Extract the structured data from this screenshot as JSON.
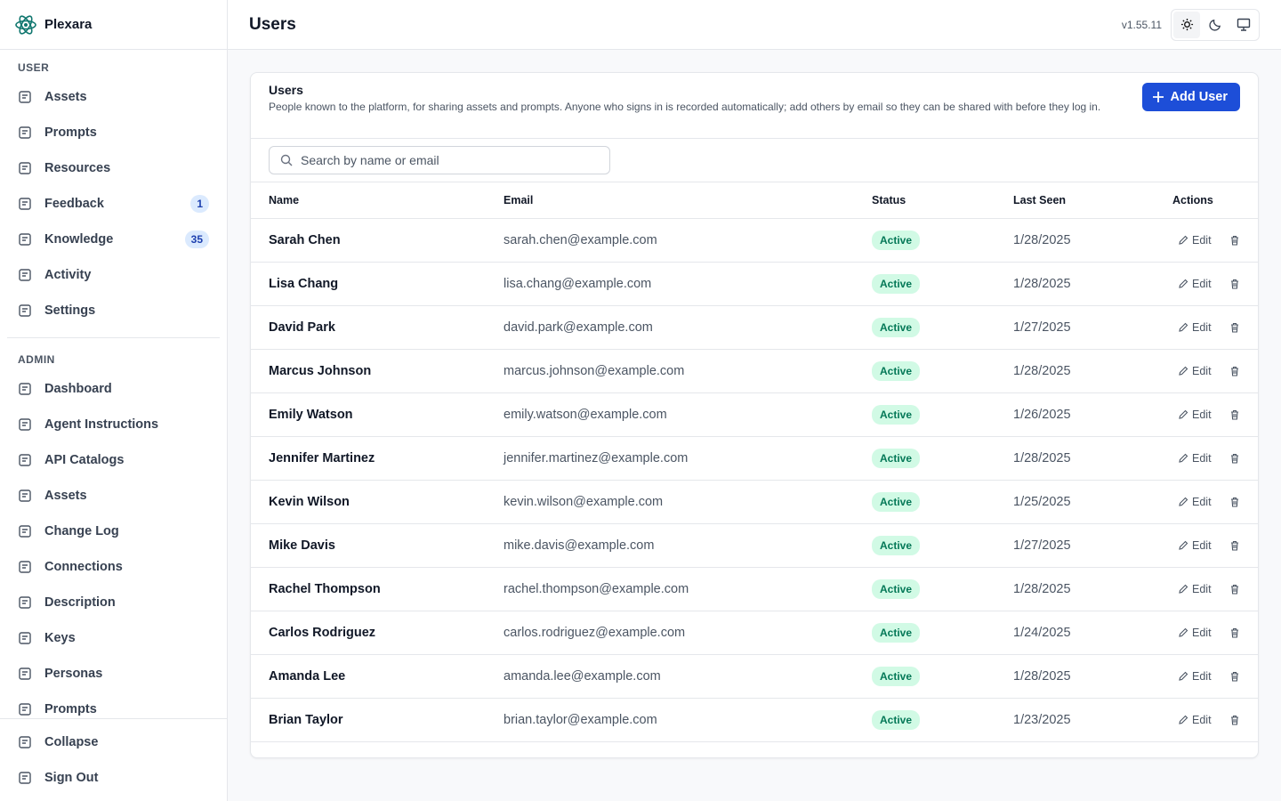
{
  "sidebar": {
    "brand": "Plexara",
    "sections": [
      {
        "title": "USER",
        "items": [
          {
            "label": "Assets"
          },
          {
            "label": "Prompts"
          },
          {
            "label": "Resources"
          },
          {
            "label": "Feedback",
            "badge": 1
          },
          {
            "label": "Knowledge",
            "badge": 35
          },
          {
            "label": "Activity"
          },
          {
            "label": "Settings"
          }
        ]
      },
      {
        "title": "ADMIN",
        "items": [
          {
            "label": "Dashboard"
          },
          {
            "label": "Agent Instructions"
          },
          {
            "label": "API Catalogs"
          },
          {
            "label": "Assets"
          },
          {
            "label": "Change Log"
          },
          {
            "label": "Connections"
          },
          {
            "label": "Description"
          },
          {
            "label": "Keys"
          },
          {
            "label": "Personas"
          },
          {
            "label": "Prompts"
          }
        ]
      }
    ],
    "footer": [
      {
        "label": "Collapse"
      },
      {
        "label": "Sign Out"
      }
    ]
  },
  "header": {
    "title": "Users",
    "version": "v1.55.11"
  },
  "card": {
    "title": "Users",
    "description": "People known to the platform, for sharing assets and prompts. Anyone who signs in is recorded automatically; add others by email so they can be shared with before they log in.",
    "add_button": "Add User",
    "search_placeholder": "Search by name or email",
    "columns": [
      "Name",
      "Email",
      "Status",
      "Last Seen",
      "Actions"
    ],
    "edit_label": "Edit",
    "rows": [
      [
        "Sarah Chen",
        "sarah.chen@example.com",
        "Active",
        "1/28/2025"
      ],
      [
        "Lisa Chang",
        "lisa.chang@example.com",
        "Active",
        "1/28/2025"
      ],
      [
        "David Park",
        "david.park@example.com",
        "Active",
        "1/27/2025"
      ],
      [
        "Marcus Johnson",
        "marcus.johnson@example.com",
        "Active",
        "1/28/2025"
      ],
      [
        "Emily Watson",
        "emily.watson@example.com",
        "Active",
        "1/26/2025"
      ],
      [
        "Jennifer Martinez",
        "jennifer.martinez@example.com",
        "Active",
        "1/28/2025"
      ],
      [
        "Kevin Wilson",
        "kevin.wilson@example.com",
        "Active",
        "1/25/2025"
      ],
      [
        "Mike Davis",
        "mike.davis@example.com",
        "Active",
        "1/27/2025"
      ],
      [
        "Rachel Thompson",
        "rachel.thompson@example.com",
        "Active",
        "1/28/2025"
      ],
      [
        "Carlos Rodriguez",
        "carlos.rodriguez@example.com",
        "Active",
        "1/24/2025"
      ],
      [
        "Amanda Lee",
        "amanda.lee@example.com",
        "Active",
        "1/28/2025"
      ],
      [
        "Brian Taylor",
        "brian.taylor@example.com",
        "Active",
        "1/23/2025"
      ]
    ]
  }
}
